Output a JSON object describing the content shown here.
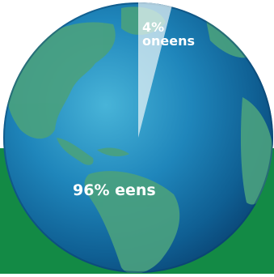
{
  "chart_data": {
    "type": "pie",
    "categories": [
      "oneens",
      "eens"
    ],
    "values": [
      4,
      96
    ],
    "labels": {
      "minor_pct": "4%",
      "minor_name": "oneens",
      "major": "96% eens"
    },
    "colors": {
      "background_band": "#138a45",
      "globe_ocean": "#1a7fb4",
      "land": "#4aa17e",
      "highlight_slice": "#e9f4f6"
    }
  }
}
